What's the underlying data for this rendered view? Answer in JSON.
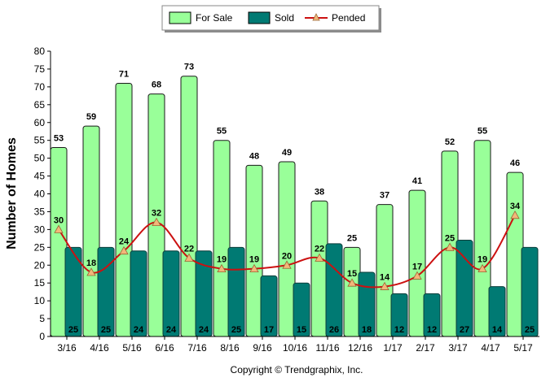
{
  "chart_data": {
    "type": "bar",
    "title": "",
    "xlabel": "",
    "ylabel": "Number of Homes",
    "ylim": [
      0,
      80
    ],
    "yticks": [
      0,
      5,
      10,
      15,
      20,
      25,
      30,
      35,
      40,
      45,
      50,
      55,
      60,
      65,
      70,
      75,
      80
    ],
    "categories": [
      "3/16",
      "4/16",
      "5/16",
      "6/16",
      "7/16",
      "8/16",
      "9/16",
      "10/16",
      "11/16",
      "12/16",
      "1/17",
      "2/17",
      "3/17",
      "4/17",
      "5/17"
    ],
    "series": [
      {
        "name": "For Sale",
        "kind": "bar",
        "color": "#99ff99",
        "values": [
          53,
          59,
          71,
          68,
          73,
          55,
          48,
          49,
          38,
          25,
          37,
          41,
          52,
          55,
          46
        ]
      },
      {
        "name": "Sold",
        "kind": "bar",
        "color": "#007a73",
        "values": [
          25,
          25,
          24,
          24,
          24,
          25,
          17,
          15,
          26,
          18,
          12,
          12,
          27,
          14,
          25
        ]
      },
      {
        "name": "Pended",
        "kind": "line",
        "color": "#cc1111",
        "marker_color": "#f2b77a",
        "values": [
          30,
          18,
          24,
          32,
          22,
          19,
          19,
          20,
          22,
          15,
          14,
          17,
          25,
          19,
          34
        ]
      }
    ],
    "grid": false,
    "legend": "top-center"
  },
  "footer": {
    "copyright": "Copyright © Trendgraphix, Inc."
  }
}
